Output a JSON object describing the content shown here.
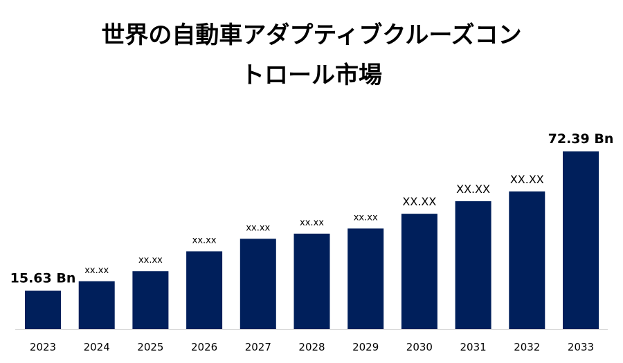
{
  "title_line1": "世界の自動車アダプティブクルーズコン",
  "title_line2": "トロール市場",
  "chart_data": {
    "type": "bar",
    "categories": [
      "2023",
      "2024",
      "2025",
      "2026",
      "2027",
      "2028",
      "2029",
      "2030",
      "2031",
      "2032",
      "2033"
    ],
    "values": [
      15.63,
      19.5,
      23.6,
      31.7,
      36.8,
      38.9,
      41.0,
      47.0,
      52.1,
      56.1,
      72.39
    ],
    "data_labels": [
      "15.63 Bn",
      "xx.xx",
      "xx.xx",
      "xx.xx",
      "xx.xx",
      "xx.xx",
      "xx.xx",
      "XX.XX",
      "XX.XX",
      "XX.XX",
      "72.39 Bn"
    ],
    "bar_color": "#001f5b",
    "ylim": [
      0,
      80
    ],
    "grid": false
  }
}
